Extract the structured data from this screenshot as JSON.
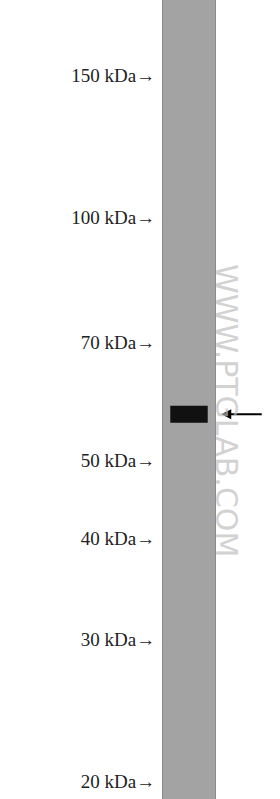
{
  "chart_data": {
    "type": "western_blot",
    "watermark": "WWW.PTGLAB.COM",
    "log": "y",
    "ylim": [
      19,
      186
    ],
    "yticks": [
      {
        "value": 150,
        "label": "150 kDa→"
      },
      {
        "value": 100,
        "label": "100 kDa→"
      },
      {
        "value": 70,
        "label": "70 kDa→"
      },
      {
        "value": 50,
        "label": "50 kDa→"
      },
      {
        "value": 40,
        "label": "40 kDa→"
      },
      {
        "value": 30,
        "label": "30 kDa→"
      },
      {
        "value": 20,
        "label": "20 kDa→"
      }
    ],
    "tick_labels": "y",
    "bands": [
      57
    ],
    "color": "#111111"
  }
}
